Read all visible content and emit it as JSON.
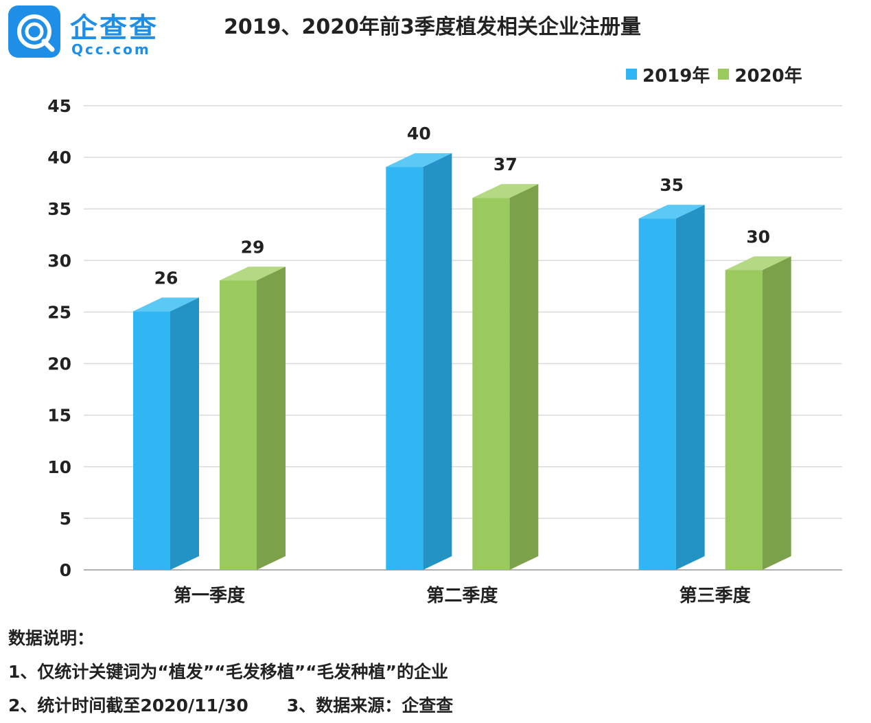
{
  "logo": {
    "name": "企查查",
    "domain": "Qcc.com"
  },
  "colors": {
    "blue_front": "#2fb6f3",
    "blue_side": "#2393c6",
    "blue_top": "#5cc8f6",
    "green_front": "#9ac95d",
    "green_side": "#7ba24a",
    "green_top": "#b4d883",
    "grid": "#d9d9d9",
    "axis": "#b0b0b0"
  },
  "chart_data": {
    "type": "bar",
    "title": "2019、2020年前3季度植发相关企业注册量",
    "categories": [
      "第一季度",
      "第二季度",
      "第三季度"
    ],
    "series": [
      {
        "name": "2019年",
        "values": [
          26,
          40,
          35
        ]
      },
      {
        "name": "2020年",
        "values": [
          29,
          37,
          30
        ]
      }
    ],
    "ylim": [
      0,
      45
    ],
    "yticks": [
      0,
      5,
      10,
      15,
      20,
      25,
      30,
      35,
      40,
      45
    ],
    "grid": true,
    "legend_position": "top-right",
    "xlabel": "",
    "ylabel": ""
  },
  "notes": {
    "heading": "数据说明：",
    "line1": "1、仅统计关键词为“植发”“毛发移植”“毛发种植”的企业",
    "line2a": "2、统计时间截至2020/11/30",
    "line2b": "3、数据来源：企查查"
  }
}
